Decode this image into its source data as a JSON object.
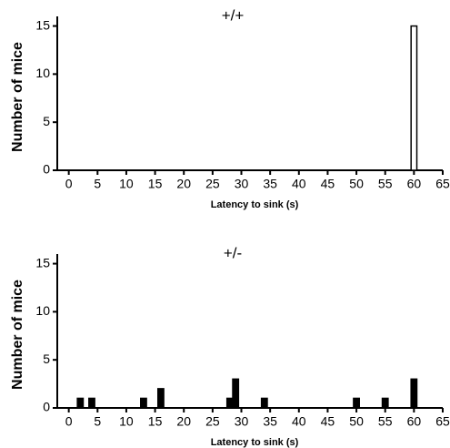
{
  "chart_data": [
    {
      "type": "bar",
      "title": "+/+",
      "x_label": "Latency to sink (s)",
      "y_label": "Number of mice",
      "x": [
        60
      ],
      "values": [
        15
      ],
      "color": "#ffffff",
      "xlim": [
        -2,
        65
      ],
      "xticks": [
        0,
        5,
        10,
        15,
        20,
        25,
        30,
        35,
        40,
        45,
        50,
        55,
        60,
        65
      ],
      "ylim": [
        0,
        16
      ],
      "yticks": [
        0,
        5,
        10,
        15
      ]
    },
    {
      "type": "bar",
      "title": "+/-",
      "x_label": "Latency to sink (s)",
      "y_label": "Number of mice",
      "x": [
        2,
        4,
        13,
        16,
        28,
        29,
        34,
        50,
        55,
        60
      ],
      "values": [
        1,
        1,
        1,
        2,
        1,
        3,
        1,
        1,
        1,
        3
      ],
      "color": "#000000",
      "xlim": [
        -2,
        65
      ],
      "xticks": [
        0,
        5,
        10,
        15,
        20,
        25,
        30,
        35,
        40,
        45,
        50,
        55,
        60,
        65
      ],
      "ylim": [
        0,
        16
      ],
      "yticks": [
        0,
        5,
        10,
        15
      ]
    }
  ]
}
